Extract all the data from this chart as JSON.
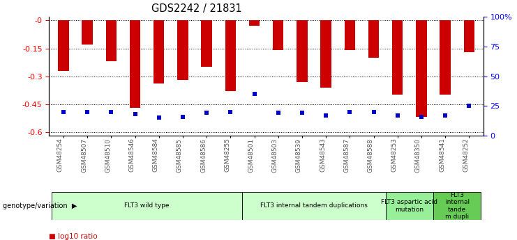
{
  "title": "GDS2242 / 21831",
  "samples": [
    "GSM48254",
    "GSM48507",
    "GSM48510",
    "GSM48546",
    "GSM48584",
    "GSM48585",
    "GSM48586",
    "GSM48255",
    "GSM48501",
    "GSM48503",
    "GSM48539",
    "GSM48543",
    "GSM48587",
    "GSM48588",
    "GSM48253",
    "GSM48350",
    "GSM48541",
    "GSM48252"
  ],
  "log10_ratio": [
    -0.27,
    -0.13,
    -0.22,
    -0.47,
    -0.34,
    -0.32,
    -0.25,
    -0.38,
    -0.03,
    -0.16,
    -0.33,
    -0.36,
    -0.16,
    -0.2,
    -0.4,
    -0.52,
    -0.4,
    -0.17
  ],
  "percentile_rank": [
    20,
    20,
    20,
    18,
    15,
    16,
    19,
    20,
    35,
    19,
    19,
    17,
    20,
    20,
    17,
    16,
    17,
    25
  ],
  "group_specs": [
    {
      "start": 0,
      "end": 7,
      "label": "FLT3 wild type",
      "color": "#ccffcc"
    },
    {
      "start": 8,
      "end": 13,
      "label": "FLT3 internal tandem duplications",
      "color": "#ccffcc"
    },
    {
      "start": 14,
      "end": 15,
      "label": "FLT3 aspartic acid\nmutation",
      "color": "#99ee99"
    },
    {
      "start": 16,
      "end": 17,
      "label": "FLT3\ninternal\ntande\nm dupli",
      "color": "#66cc55"
    }
  ],
  "ylim_left": [
    -0.62,
    0.02
  ],
  "ylim_right": [
    0,
    100
  ],
  "yticks_left": [
    0,
    -0.15,
    -0.3,
    -0.45,
    -0.6
  ],
  "yticks_right": [
    0,
    25,
    50,
    75,
    100
  ],
  "bar_color": "#cc0000",
  "marker_color": "#0000cc",
  "background_color": "#ffffff",
  "genotype_label": "genotype/variation"
}
